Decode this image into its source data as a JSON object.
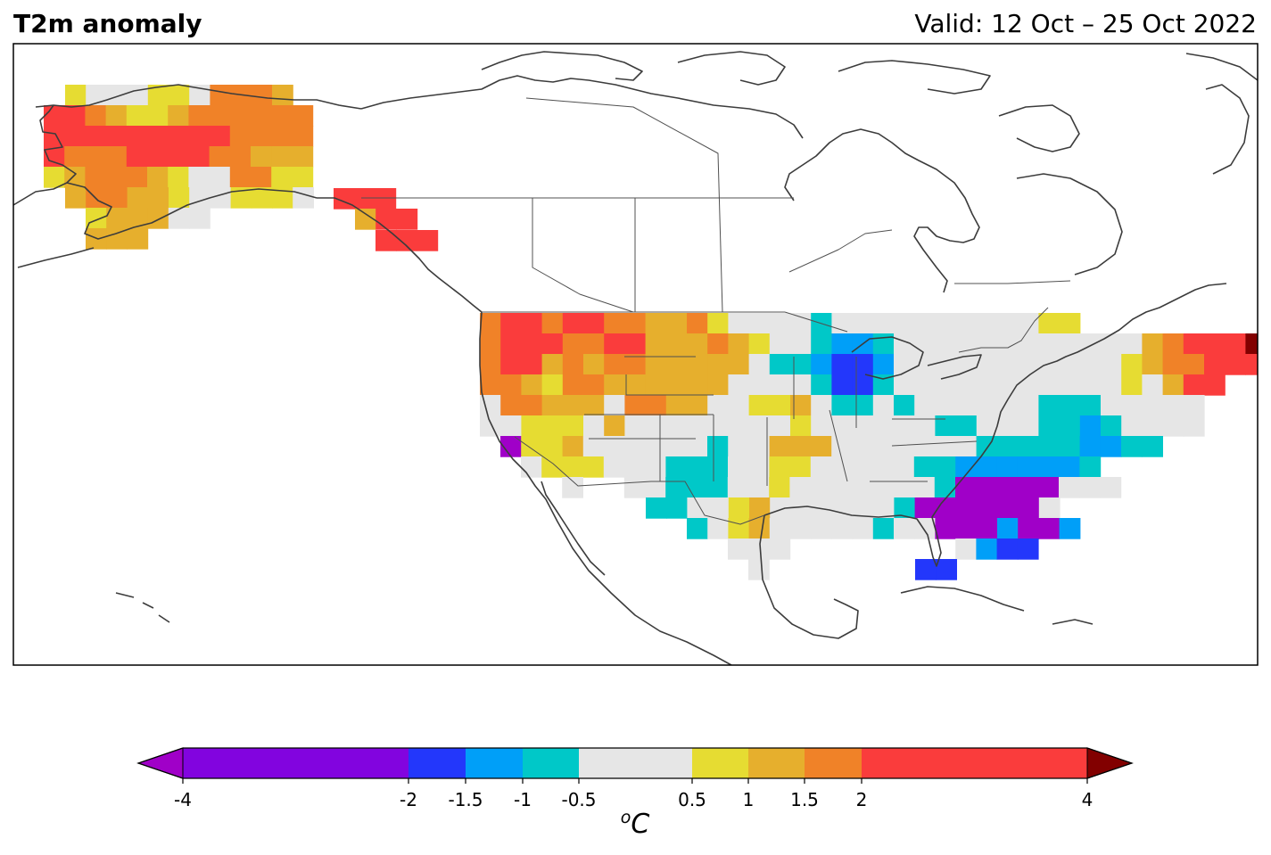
{
  "title": "T2m anomaly",
  "valid": "Valid: 12 Oct – 25 Oct 2022",
  "colorbar": {
    "unit_prefix": "o",
    "unit": "C",
    "ticks": [
      "-4",
      "-2",
      "-1.5",
      "-1",
      "-0.5",
      "0.5",
      "1",
      "1.5",
      "2",
      "4"
    ],
    "bins": [
      {
        "from": -4,
        "to": -2,
        "color": "#8204df"
      },
      {
        "from": -2,
        "to": -1.5,
        "color": "#2337fb"
      },
      {
        "from": -1.5,
        "to": -1,
        "color": "#009ff8"
      },
      {
        "from": -1,
        "to": -0.5,
        "color": "#00c8c8"
      },
      {
        "from": -0.5,
        "to": 0.5,
        "color": "#e6e6e6"
      },
      {
        "from": 0.5,
        "to": 1,
        "color": "#e6dc32"
      },
      {
        "from": 1,
        "to": 1.5,
        "color": "#e6af2d"
      },
      {
        "from": 1.5,
        "to": 2,
        "color": "#f08228"
      },
      {
        "from": 2,
        "to": 4,
        "color": "#fa3c3c"
      }
    ],
    "under_color": "#a000c8",
    "over_color": "#820000"
  },
  "colors": {
    "coast": "#3c3c3c",
    "border": "#505050"
  }
}
